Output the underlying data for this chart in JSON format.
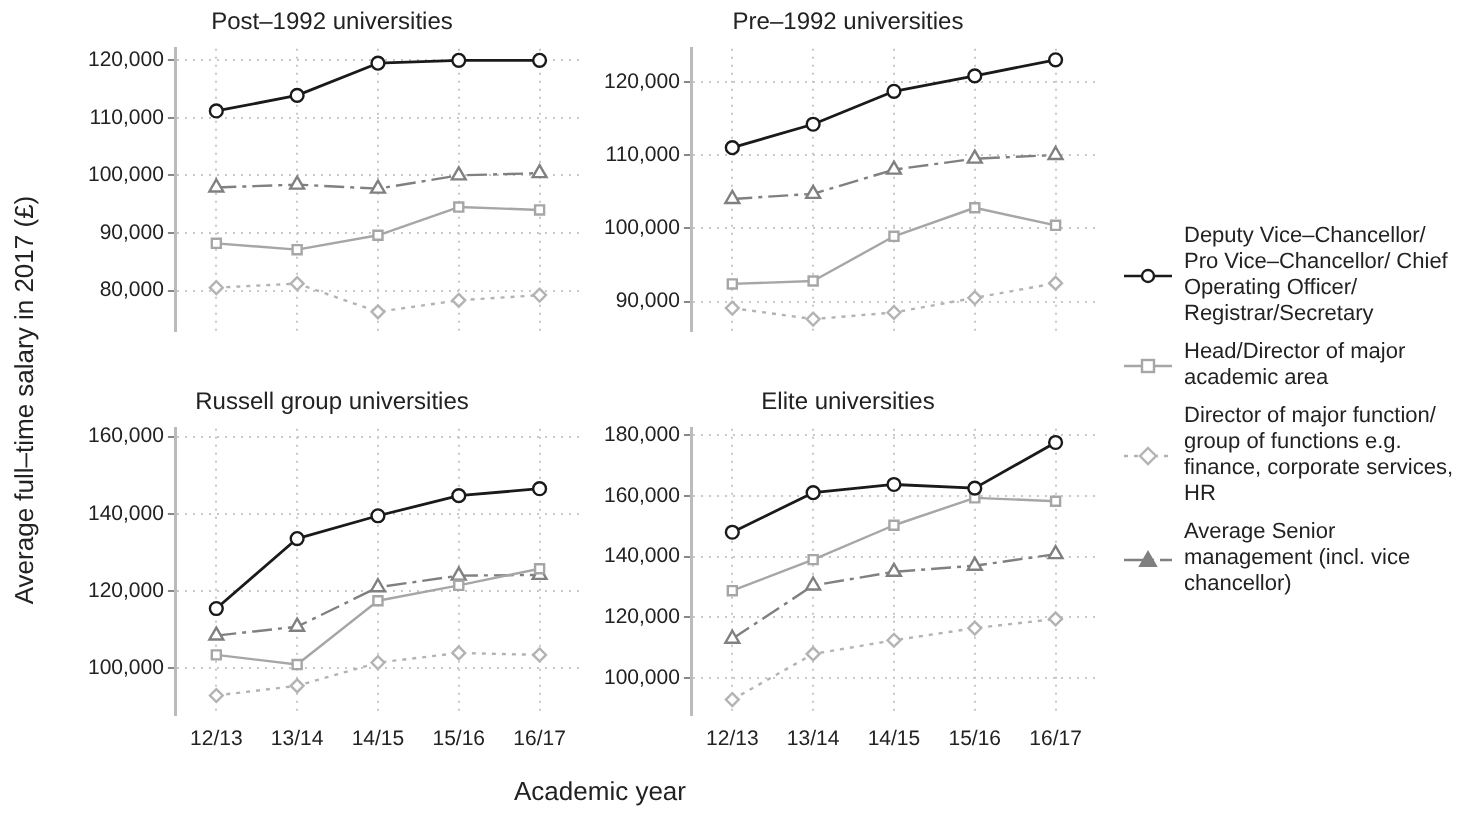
{
  "chart_data": [
    {
      "type": "line",
      "title": "Post–1992 universities",
      "ylabel": "Average full–time salary in 2017 (£)",
      "xlabel": "Academic year",
      "legend": "right",
      "grid": true,
      "categories": [
        null,
        null,
        null,
        null,
        null
      ],
      "ylim": [
        73000,
        122000
      ],
      "yticks": [
        {
          "value": 80000,
          "label": "80,000"
        },
        {
          "value": 90000,
          "label": "90,000"
        },
        {
          "value": 100000,
          "label": "100,000"
        },
        {
          "value": 110000,
          "label": "110,000"
        },
        {
          "value": 120000,
          "label": "120,000"
        }
      ],
      "series": [
        {
          "name": "Deputy Vice–Chancellor/ Pro Vice–Chancellor/ Chief Operating Officer/ Registrar/Secretary",
          "color": "#1a1a1a",
          "marker": "circle",
          "line_style": "solid",
          "values": [
            111200,
            113900,
            119500,
            120000,
            120000
          ]
        },
        {
          "name": "Head/Director of major academic area",
          "color": "#a6a6a6",
          "marker": "square",
          "line_style": "solid",
          "values": [
            88200,
            87100,
            89600,
            94500,
            94000
          ]
        },
        {
          "name": "Director of major function/ group of functions e.g. finance, corporate services, HR",
          "color": "#b3b3b3",
          "marker": "diamond",
          "line_style": "dotted",
          "values": [
            80500,
            81200,
            76300,
            78300,
            79200
          ]
        },
        {
          "name": "Average Senior management (incl. vice chancellor)",
          "color": "#808080",
          "marker": "triangle",
          "line_style": "dashed",
          "values": [
            97900,
            98400,
            97700,
            100000,
            100400
          ]
        }
      ]
    },
    {
      "type": "line",
      "title": "Pre–1992 universities",
      "grid": true,
      "categories": [
        null,
        null,
        null,
        null,
        null
      ],
      "ylim": [
        86000,
        124500
      ],
      "yticks": [
        {
          "value": 90000,
          "label": "90,000"
        },
        {
          "value": 100000,
          "label": "100,000"
        },
        {
          "value": 110000,
          "label": "110,000"
        },
        {
          "value": 120000,
          "label": "120,000"
        }
      ],
      "series": [
        {
          "color": "#1a1a1a",
          "marker": "circle",
          "line_style": "solid",
          "values": [
            111000,
            114200,
            118700,
            120800,
            123000
          ]
        },
        {
          "color": "#a6a6a6",
          "marker": "square",
          "line_style": "solid",
          "values": [
            92400,
            92800,
            98900,
            102800,
            100400
          ]
        },
        {
          "color": "#b3b3b3",
          "marker": "diamond",
          "line_style": "dotted",
          "values": [
            89100,
            87600,
            88500,
            90500,
            92500
          ]
        },
        {
          "color": "#808080",
          "marker": "triangle",
          "line_style": "dashed",
          "values": [
            104000,
            104700,
            108000,
            109500,
            110000
          ]
        }
      ]
    },
    {
      "type": "line",
      "title": "Russell group universities",
      "grid": true,
      "categories": [
        "12/13",
        "13/14",
        "14/15",
        "15/16",
        "16/17"
      ],
      "ylim": [
        88000,
        162000
      ],
      "yticks": [
        {
          "value": 100000,
          "label": "100,000"
        },
        {
          "value": 120000,
          "label": "120,000"
        },
        {
          "value": 140000,
          "label": "140,000"
        },
        {
          "value": 160000,
          "label": "160,000"
        }
      ],
      "series": [
        {
          "color": "#1a1a1a",
          "marker": "circle",
          "line_style": "solid",
          "values": [
            115500,
            133600,
            139500,
            144700,
            146500
          ]
        },
        {
          "color": "#a6a6a6",
          "marker": "square",
          "line_style": "solid",
          "values": [
            103500,
            101000,
            117500,
            121500,
            125800
          ]
        },
        {
          "color": "#b3b3b3",
          "marker": "diamond",
          "line_style": "dotted",
          "values": [
            93000,
            95500,
            101500,
            104000,
            103500
          ]
        },
        {
          "color": "#808080",
          "marker": "triangle",
          "line_style": "dashed",
          "values": [
            108500,
            110800,
            121000,
            124000,
            124200
          ]
        }
      ]
    },
    {
      "type": "line",
      "title": "Elite universities",
      "grid": true,
      "categories": [
        "12/13",
        "13/14",
        "14/15",
        "15/16",
        "16/17"
      ],
      "ylim": [
        88000,
        182000
      ],
      "yticks": [
        {
          "value": 100000,
          "label": "100,000"
        },
        {
          "value": 120000,
          "label": "120,000"
        },
        {
          "value": 140000,
          "label": "140,000"
        },
        {
          "value": 160000,
          "label": "160,000"
        },
        {
          "value": 180000,
          "label": "180,000"
        }
      ],
      "series": [
        {
          "color": "#1a1a1a",
          "marker": "circle",
          "line_style": "solid",
          "values": [
            148000,
            161000,
            163700,
            162500,
            177500
          ]
        },
        {
          "color": "#a6a6a6",
          "marker": "square",
          "line_style": "solid",
          "values": [
            128800,
            139000,
            150300,
            159300,
            158200
          ]
        },
        {
          "color": "#b3b3b3",
          "marker": "diamond",
          "line_style": "dotted",
          "values": [
            93000,
            108000,
            112500,
            116500,
            119500
          ]
        },
        {
          "color": "#808080",
          "marker": "triangle",
          "line_style": "dashed",
          "values": [
            113000,
            130500,
            135000,
            137000,
            140800
          ]
        }
      ]
    }
  ]
}
